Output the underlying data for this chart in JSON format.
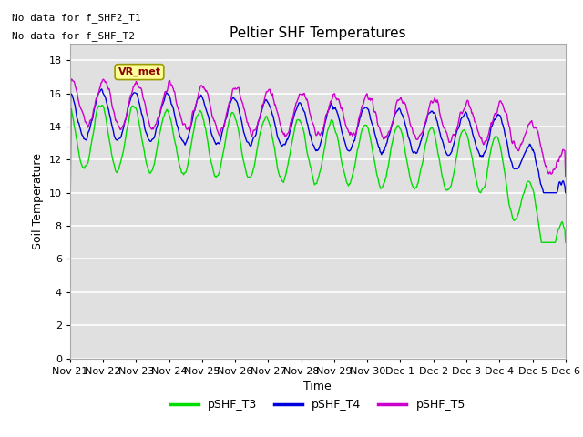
{
  "title": "Peltier SHF Temperatures",
  "xlabel": "Time",
  "ylabel": "Soil Temperature",
  "no_data_text_1": "No data for f_SHF2_T1",
  "no_data_text_2": "No data for f_SHF_T2",
  "ylim": [
    0,
    19
  ],
  "yticks": [
    0,
    2,
    4,
    6,
    8,
    10,
    12,
    14,
    16,
    18
  ],
  "vr_met_label": "VR_met",
  "colors": {
    "pSHF_T3": "#00dd00",
    "pSHF_T4": "#0000dd",
    "pSHF_T5": "#cc00cc"
  },
  "legend_labels": [
    "pSHF_T3",
    "pSHF_T4",
    "pSHF_T5"
  ],
  "background_color": "#ffffff",
  "plot_bg_color": "#e0e0e0",
  "grid_color": "#ffffff",
  "xtick_labels": [
    "Nov 21",
    "Nov 22",
    "Nov 23",
    "Nov 24",
    "Nov 25",
    "Nov 26",
    "Nov 27",
    "Nov 28",
    "Nov 29",
    "Nov 30",
    "Dec 1",
    "Dec 2",
    "Dec 3",
    "Dec 4",
    "Dec 5",
    "Dec 6"
  ],
  "n_days": 15,
  "n_per_day": 48
}
